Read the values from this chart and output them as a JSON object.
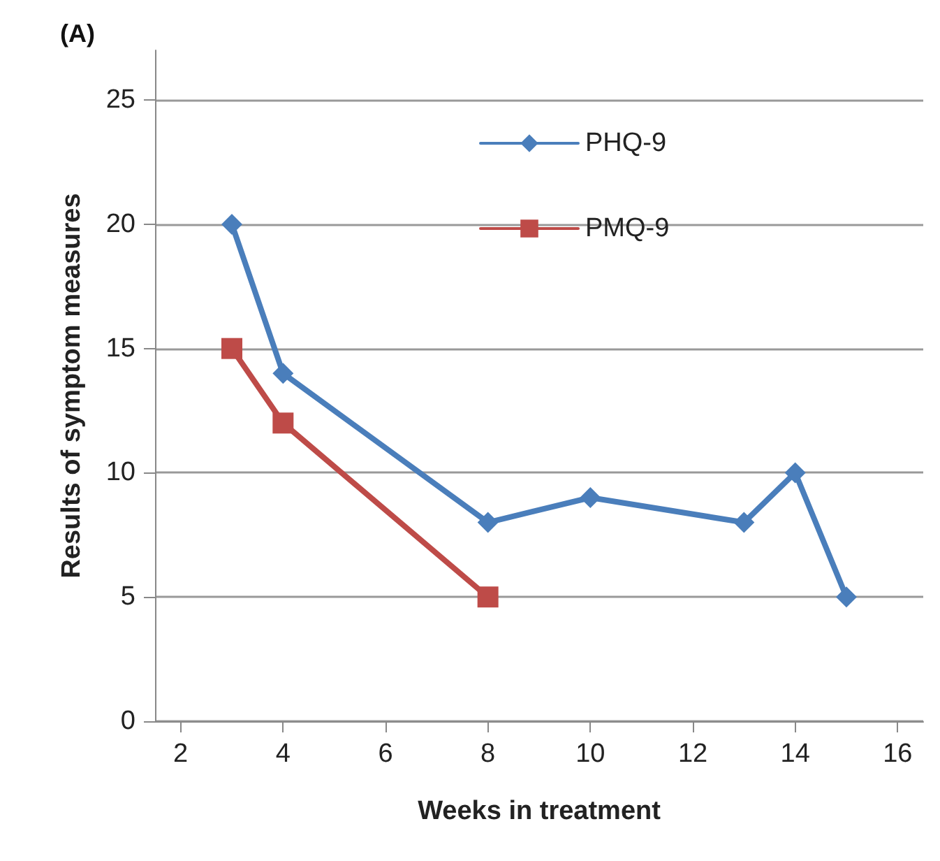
{
  "chart_data": {
    "type": "line",
    "title": "(A)",
    "xlabel": "Weeks in treatment",
    "ylabel": "Results of symptom measures",
    "x": [
      3,
      4,
      8,
      10,
      13,
      14,
      15
    ],
    "series": [
      {
        "name": "PHQ-9",
        "color": "#4a7ebb",
        "marker": "diamond",
        "values": [
          20,
          14,
          8,
          9,
          8,
          10,
          5
        ]
      },
      {
        "name": "PMQ-9",
        "color": "#be4b48",
        "marker": "square",
        "x": [
          3,
          4,
          8
        ],
        "values": [
          15,
          12,
          5
        ]
      }
    ],
    "xlim": [
      1.5,
      16.5
    ],
    "xticks": [
      2,
      4,
      6,
      8,
      10,
      12,
      14,
      16
    ],
    "ylim": [
      0,
      27
    ],
    "yticks": [
      0,
      5,
      10,
      15,
      20,
      25
    ],
    "grid": "y",
    "legend": "top"
  }
}
